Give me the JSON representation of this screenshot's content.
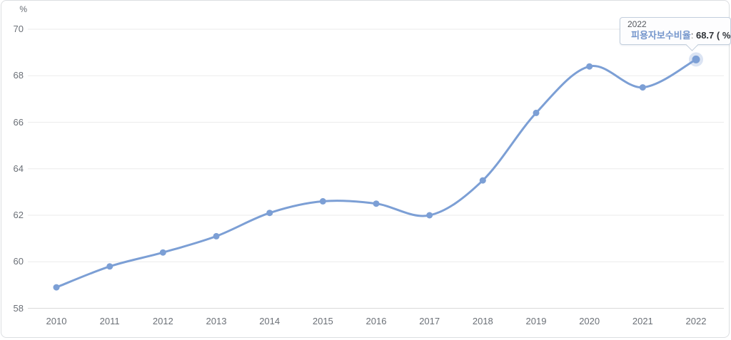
{
  "unit_label": "%",
  "tooltip": {
    "year": "2022",
    "series_label": "피용자보수비율",
    "separator": ": ",
    "value": "68.7",
    "suffix": " ( % )"
  },
  "colors": {
    "line": "#7c9fd5",
    "dot": "#7c9fd5",
    "halo": "#7c9fd5",
    "grid": "#ebebeb",
    "axis": "#d9d9d9",
    "tick_text": "#6b7077"
  },
  "chart_data": {
    "type": "line",
    "categories": [
      "2010",
      "2011",
      "2012",
      "2013",
      "2014",
      "2015",
      "2016",
      "2017",
      "2018",
      "2019",
      "2020",
      "2021",
      "2022"
    ],
    "series": [
      {
        "name": "피용자보수비율",
        "values": [
          58.9,
          59.8,
          60.4,
          61.1,
          62.1,
          62.6,
          62.5,
          62.0,
          63.5,
          66.4,
          68.4,
          67.5,
          68.7
        ]
      }
    ],
    "title": "",
    "xlabel": "",
    "ylabel": "%",
    "ylim": [
      58,
      70
    ],
    "y_ticks": [
      70,
      68,
      66,
      64,
      62,
      60,
      58
    ],
    "grid": true,
    "legend_position": "none",
    "line_smoothing": "spline",
    "active_point": {
      "category": "2022",
      "value": 68.7,
      "unit": "%"
    }
  }
}
